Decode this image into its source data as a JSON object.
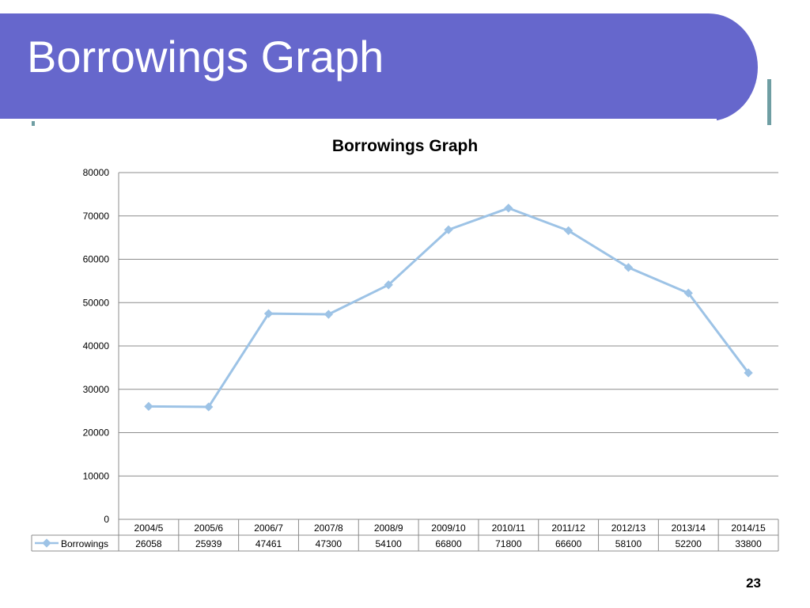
{
  "slide": {
    "title": "Borrowings Graph",
    "page_number": "23"
  },
  "colors": {
    "header": "#6667cc",
    "accent_frame": "#6f9ea3",
    "series_line": "#9dc3e6"
  },
  "chart_data": {
    "type": "line",
    "title": "Borrowings Graph",
    "xlabel": "",
    "ylabel": "",
    "categories": [
      "2004/5",
      "2005/6",
      "2006/7",
      "2007/8",
      "2008/9",
      "2009/10",
      "2010/11",
      "2011/12",
      "2012/13",
      "2013/14",
      "2014/15"
    ],
    "series": [
      {
        "name": "Borrowings",
        "values": [
          26058,
          25939,
          47461,
          47300,
          54100,
          66800,
          71800,
          66600,
          58100,
          52200,
          33800
        ]
      }
    ],
    "ylim": [
      0,
      80000
    ],
    "yticks": [
      "0",
      "10000",
      "20000",
      "30000",
      "40000",
      "50000",
      "60000",
      "70000",
      "80000"
    ],
    "grid": true,
    "legend": "data-table-left",
    "data_table": true
  }
}
